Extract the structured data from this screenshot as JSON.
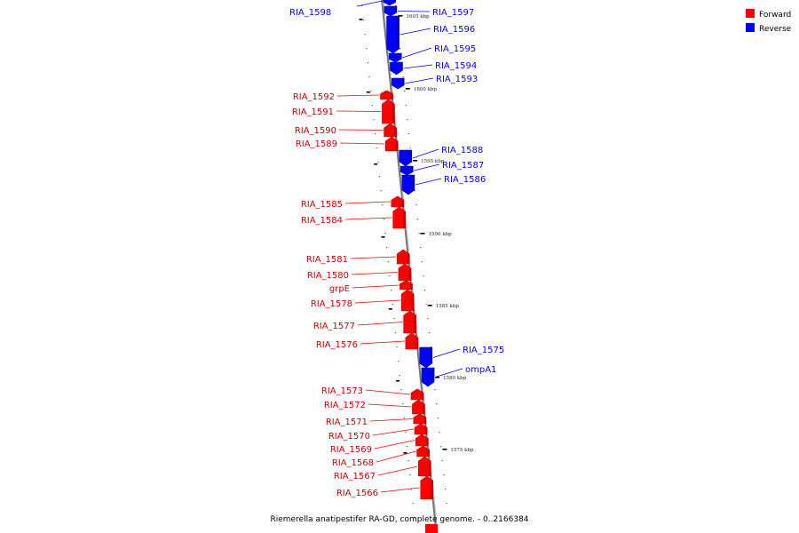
{
  "caption": "Riemerella anatipestifer RA-GD, complete genome. - 0..2166384",
  "legend": [
    {
      "label": "Forward",
      "color": "#ff0000"
    },
    {
      "label": "Reverse",
      "color": "#0000ff"
    }
  ],
  "colors": {
    "forward": "#ff0000",
    "reverse": "#0000ff",
    "backbone": "#888888"
  },
  "ticks": [
    "1605 kbp",
    "1600 kbp",
    "1595 kbp",
    "1590 kbp",
    "1585 kbp",
    "1580 kbp",
    "1575 kbp"
  ],
  "reverse_genes": [
    "RIA_1598",
    "RIA_1597",
    "RIA_1596",
    "RIA_1595",
    "RIA_1594",
    "RIA_1593",
    "RIA_1588",
    "RIA_1587",
    "RIA_1586",
    "RIA_1575",
    "ompA1"
  ],
  "forward_genes": [
    "RIA_1592",
    "RIA_1591",
    "RIA_1590",
    "RIA_1589",
    "RIA_1585",
    "RIA_1584",
    "RIA_1581",
    "RIA_1580",
    "grpE",
    "RIA_1578",
    "RIA_1577",
    "RIA_1576",
    "RIA_1573",
    "RIA_1572",
    "RIA_1571",
    "RIA_1570",
    "RIA_1569",
    "RIA_1568",
    "RIA_1567",
    "RIA_1566"
  ]
}
